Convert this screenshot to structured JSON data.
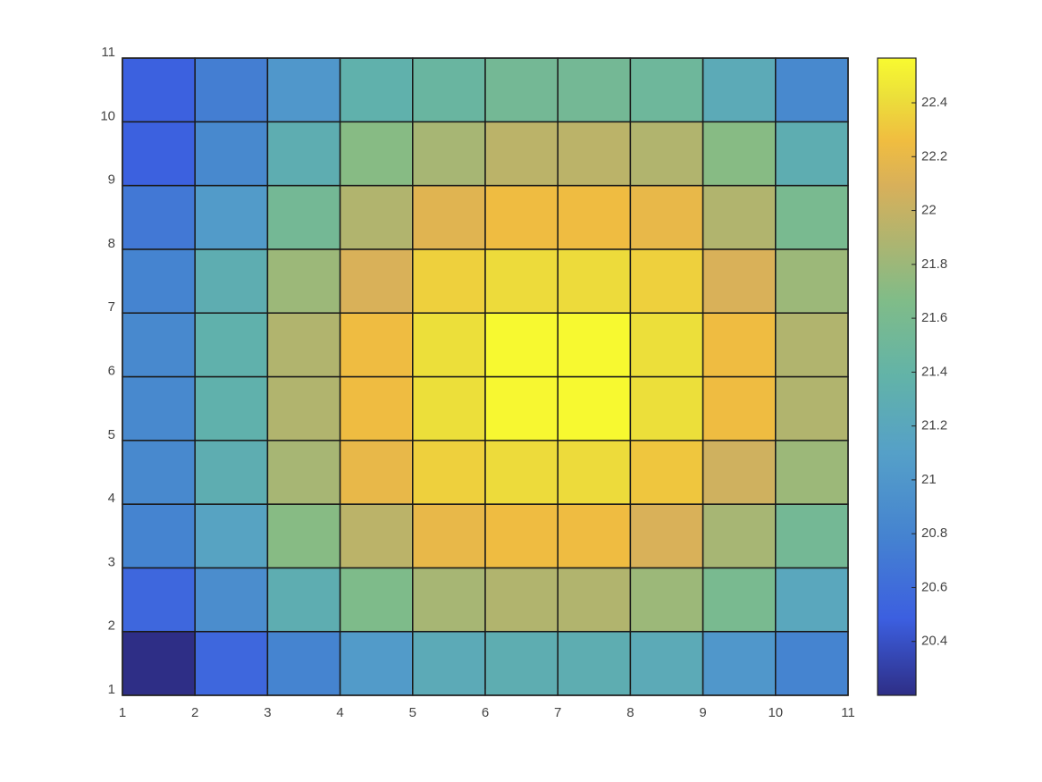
{
  "chart_data": {
    "type": "heatmap",
    "colormap": "parula",
    "xlim": [
      1,
      11
    ],
    "xticks": [
      1,
      2,
      3,
      4,
      5,
      6,
      7,
      8,
      9,
      10,
      11
    ],
    "ylim": [
      1,
      11
    ],
    "yticks": [
      1,
      2,
      3,
      4,
      5,
      6,
      7,
      8,
      9,
      10,
      11
    ],
    "values": [
      [
        20.2,
        20.55,
        20.8,
        21.05,
        21.25,
        21.3,
        21.3,
        21.25,
        21.0,
        20.8
      ],
      [
        20.55,
        20.9,
        21.3,
        21.65,
        21.85,
        21.9,
        21.9,
        21.8,
        21.6,
        21.2
      ],
      [
        20.8,
        21.15,
        21.7,
        21.95,
        22.2,
        22.25,
        22.25,
        22.1,
        21.85,
        21.55
      ],
      [
        20.85,
        21.3,
        21.85,
        22.2,
        22.35,
        22.4,
        22.4,
        22.3,
        22.05,
        21.8
      ],
      [
        20.85,
        21.35,
        21.9,
        22.25,
        22.42,
        22.55,
        22.56,
        22.42,
        22.25,
        21.9
      ],
      [
        20.85,
        21.35,
        21.9,
        22.25,
        22.42,
        22.56,
        22.56,
        22.42,
        22.25,
        21.9
      ],
      [
        20.8,
        21.3,
        21.8,
        22.1,
        22.35,
        22.4,
        22.4,
        22.35,
        22.1,
        21.8
      ],
      [
        20.7,
        21.05,
        21.55,
        21.9,
        22.15,
        22.25,
        22.25,
        22.2,
        21.9,
        21.6
      ],
      [
        20.5,
        20.85,
        21.3,
        21.7,
        21.85,
        21.95,
        21.95,
        21.9,
        21.7,
        21.3
      ],
      [
        20.5,
        20.75,
        21.0,
        21.35,
        21.45,
        21.55,
        21.55,
        21.5,
        21.25,
        20.85
      ]
    ],
    "clim": [
      20.2,
      22.566
    ],
    "cticks": [
      20.4,
      20.6,
      20.8,
      21,
      21.2,
      21.4,
      21.6,
      21.8,
      22,
      22.2,
      22.4
    ]
  }
}
